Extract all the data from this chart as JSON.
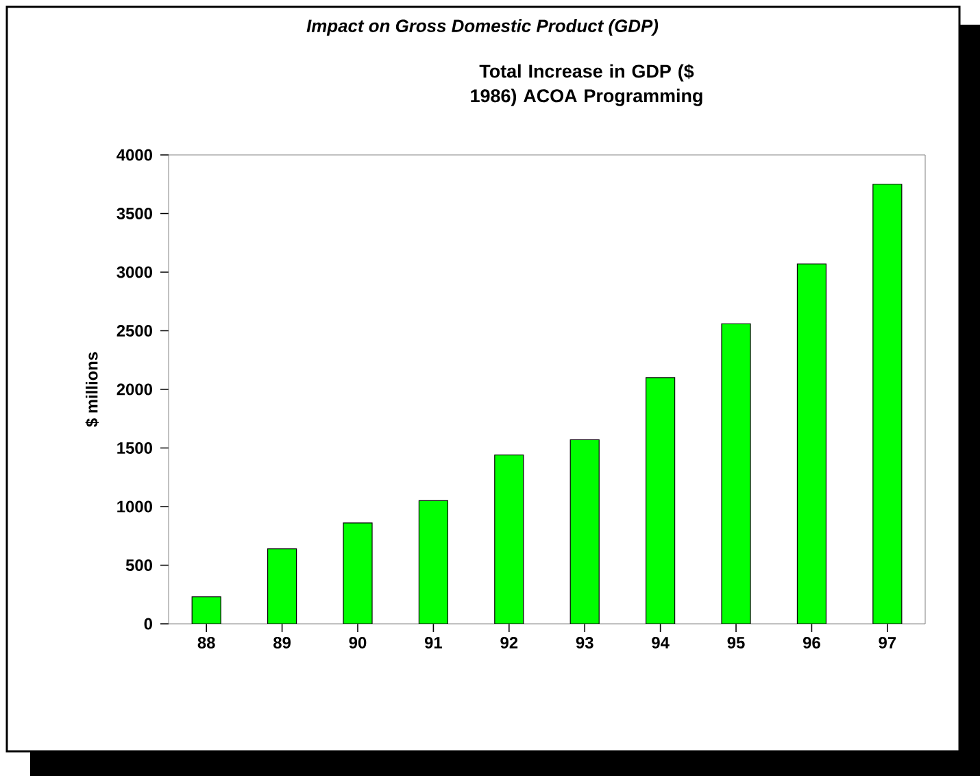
{
  "chart_data": {
    "type": "bar",
    "title": "Impact on Gross Domestic Product (GDP)",
    "subtitle": "Total Increase in GDP ($ 1986) ACOA Programming",
    "ylabel": "$ millions",
    "categories": [
      "88",
      "89",
      "90",
      "91",
      "92",
      "93",
      "94",
      "95",
      "96",
      "97"
    ],
    "values": [
      230,
      640,
      860,
      1050,
      1440,
      1570,
      2100,
      2560,
      3070,
      3750
    ],
    "color": "#00ff00",
    "ylim": [
      0,
      4000
    ],
    "yticks": [
      0,
      500,
      1000,
      1500,
      2000,
      2500,
      3000,
      3500,
      4000
    ]
  }
}
